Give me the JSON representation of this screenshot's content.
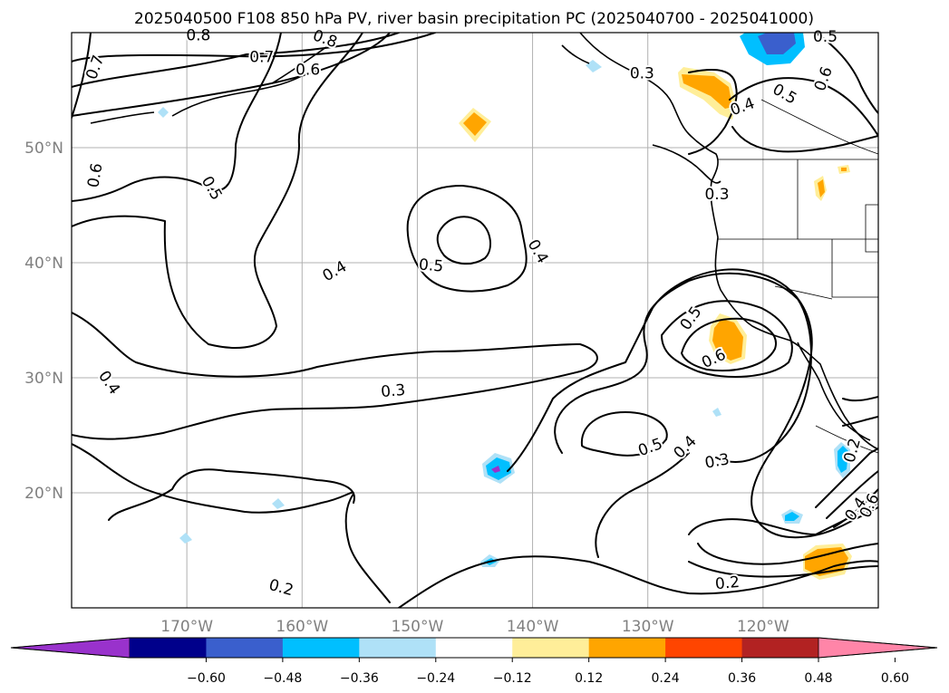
{
  "title": "2025040500 F108 850 hPa PV, river basin precipitation PC (2025040700 - 2025041000)",
  "map": {
    "lon_range": [
      -180,
      -110
    ],
    "lat_range": [
      10,
      60
    ],
    "lon_ticks": [
      {
        "lon": -170,
        "label": "170°W"
      },
      {
        "lon": -160,
        "label": "160°W"
      },
      {
        "lon": -150,
        "label": "150°W"
      },
      {
        "lon": -140,
        "label": "140°W"
      },
      {
        "lon": -130,
        "label": "130°W"
      },
      {
        "lon": -120,
        "label": "120°W"
      }
    ],
    "lat_ticks": [
      {
        "lat": 50,
        "label": "50°N"
      },
      {
        "lat": 40,
        "label": "40°N"
      },
      {
        "lat": 30,
        "label": "30°N"
      },
      {
        "lat": 20,
        "label": "20°N"
      }
    ],
    "grid": true,
    "contour_labels": [
      {
        "lon": -178,
        "lat": 57,
        "text": "0.7",
        "rot": -70
      },
      {
        "lon": -159.5,
        "lat": 56.8,
        "text": "0.6",
        "rot": 0
      },
      {
        "lon": -163.5,
        "lat": 57.9,
        "text": "0.7",
        "rot": 0
      },
      {
        "lon": -169,
        "lat": 59.8,
        "text": "0.8",
        "rot": 0
      },
      {
        "lon": -158,
        "lat": 59.5,
        "text": "0.8",
        "rot": 20
      },
      {
        "lon": -178,
        "lat": 47.6,
        "text": "0.6",
        "rot": -80
      },
      {
        "lon": -167.8,
        "lat": 46.5,
        "text": "0.5",
        "rot": 60
      },
      {
        "lon": -157.2,
        "lat": 39.3,
        "text": "0.4",
        "rot": -30
      },
      {
        "lon": -176.7,
        "lat": 29.6,
        "text": "0.4",
        "rot": 55
      },
      {
        "lon": -148.8,
        "lat": 39.8,
        "text": "0.5",
        "rot": 5
      },
      {
        "lon": -139.5,
        "lat": 41.0,
        "text": "0.4",
        "rot": 60
      },
      {
        "lon": -152.1,
        "lat": 28.9,
        "text": "0.3",
        "rot": -5
      },
      {
        "lon": -130.5,
        "lat": 56.5,
        "text": "0.3",
        "rot": 0
      },
      {
        "lon": -121.8,
        "lat": 53.6,
        "text": "0.4",
        "rot": -20
      },
      {
        "lon": -118.1,
        "lat": 54.7,
        "text": "0.5",
        "rot": 30
      },
      {
        "lon": -114.8,
        "lat": 56.0,
        "text": "0.6",
        "rot": -70
      },
      {
        "lon": -114.6,
        "lat": 59.7,
        "text": "0.5",
        "rot": 0
      },
      {
        "lon": -124.0,
        "lat": 46.0,
        "text": "0.3",
        "rot": 0
      },
      {
        "lon": -126.3,
        "lat": 35.2,
        "text": "0.5",
        "rot": -55
      },
      {
        "lon": -124.3,
        "lat": 31.7,
        "text": "0.6",
        "rot": -25
      },
      {
        "lon": -129.8,
        "lat": 24.0,
        "text": "0.5",
        "rot": -20
      },
      {
        "lon": -126.8,
        "lat": 24.0,
        "text": "0.4",
        "rot": -45
      },
      {
        "lon": -124.0,
        "lat": 22.8,
        "text": "0.3",
        "rot": -10
      },
      {
        "lon": -112.3,
        "lat": 23.7,
        "text": "0.2",
        "rot": -75
      },
      {
        "lon": -112.0,
        "lat": 18.6,
        "text": "0.4",
        "rot": -55
      },
      {
        "lon": -110.8,
        "lat": 18.9,
        "text": "0.6",
        "rot": -65
      },
      {
        "lon": -123.1,
        "lat": 12.2,
        "text": "0.2",
        "rot": -5
      },
      {
        "lon": -161.8,
        "lat": 11.8,
        "text": "0.2",
        "rot": 15
      }
    ]
  },
  "colorbar": {
    "colors": [
      "#9932cc",
      "#00008b",
      "#3a5fcd",
      "#00bfff",
      "#afe1f7",
      "#ffffff",
      "#ffee99",
      "#ffa500",
      "#ff4500",
      "#b22222",
      "#ff85a8"
    ],
    "ticks": [
      "−0.60",
      "−0.48",
      "−0.36",
      "−0.24",
      "−0.12",
      "0.12",
      "0.24",
      "0.36",
      "0.48",
      "0.60"
    ]
  }
}
